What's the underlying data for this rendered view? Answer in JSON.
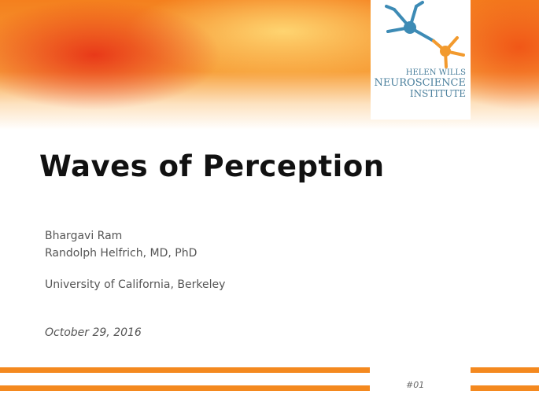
{
  "logo": {
    "lines": [
      "HELEN WILLS",
      "NEUROSCIENCE",
      "INSTITUTE"
    ]
  },
  "title": "Waves of Perception",
  "authors": [
    "Bhargavi Ram",
    "Randolph Helfrich, MD, PhD"
  ],
  "affiliation": "University of California, Berkeley",
  "date": "October 29, 2016",
  "slide_number": "#01"
}
